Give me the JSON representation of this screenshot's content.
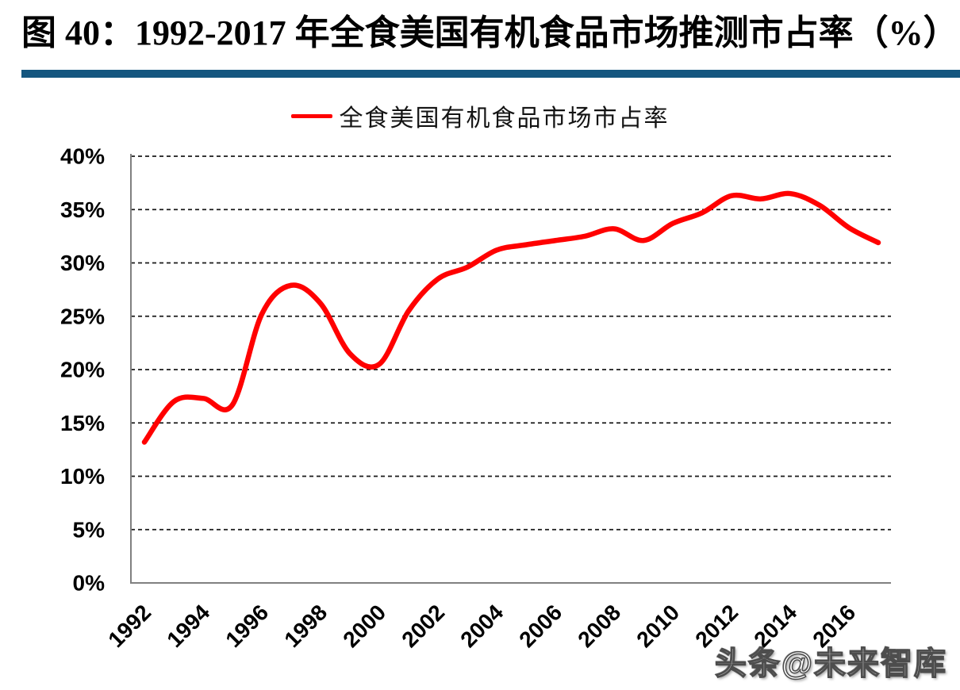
{
  "figure": {
    "title": "图 40：1992-2017 年全食美国有机食品市场推测市占率（%）"
  },
  "legend": {
    "label": "全食美国有机食品市场市占率"
  },
  "watermark": {
    "text": "头条@未来智库"
  },
  "colors": {
    "accent_bar": "#14567F",
    "series_line": "#FF0000",
    "gridline": "#1a1a1a",
    "axis": "#808080",
    "label_text": "#000000"
  },
  "chart_data": {
    "type": "line",
    "title": "1992-2017 年全食美国有机食品市场推测市占率（%）",
    "smooth": true,
    "grid": "horizontal-dashed",
    "legend_position": "top-center",
    "xlabel": "",
    "ylabel": "",
    "ylim": [
      0,
      40
    ],
    "y_tick_step": 5,
    "y_tick_labels": [
      "0%",
      "5%",
      "10%",
      "15%",
      "20%",
      "25%",
      "30%",
      "35%",
      "40%"
    ],
    "x": [
      1992,
      1993,
      1994,
      1995,
      1996,
      1997,
      1998,
      1999,
      2000,
      2001,
      2002,
      2003,
      2004,
      2005,
      2006,
      2007,
      2008,
      2009,
      2010,
      2011,
      2012,
      2013,
      2014,
      2015,
      2016,
      2017
    ],
    "x_tick_labels": [
      "1992",
      "1994",
      "1996",
      "1998",
      "2000",
      "2002",
      "2004",
      "2006",
      "2008",
      "2010",
      "2012",
      "2014",
      "2016"
    ],
    "series": [
      {
        "name": "全食美国有机食品市场市占率",
        "color": "#FF0000",
        "unit": "%",
        "values": [
          13.2,
          17.0,
          17.3,
          16.7,
          25.2,
          27.9,
          26.2,
          21.5,
          20.5,
          25.5,
          28.5,
          29.6,
          31.2,
          31.7,
          32.1,
          32.5,
          33.2,
          32.1,
          33.7,
          34.7,
          36.3,
          36.0,
          36.5,
          35.4,
          33.3,
          31.9
        ]
      }
    ]
  }
}
